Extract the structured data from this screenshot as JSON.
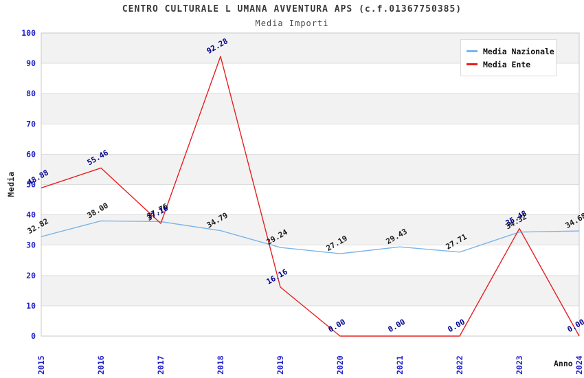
{
  "header": {
    "title": "CENTRO CULTURALE L UMANA AVVENTURA APS (c.f.01367750385)",
    "subtitle": "Media Importi"
  },
  "axes": {
    "y_label": "Media",
    "x_label": "Anno",
    "tick_color": "#2222cc",
    "grid_color": "#dcdcdc",
    "band_color": "#f2f2f2",
    "border_color": "#c8c8c8"
  },
  "chart_data": {
    "type": "line",
    "title": "CENTRO CULTURALE L UMANA AVVENTURA APS (c.f.01367750385)",
    "subtitle": "Media Importi",
    "xlabel": "Anno",
    "ylabel": "Media",
    "ylim": [
      0,
      100
    ],
    "ytick_step": 10,
    "grid": true,
    "legend_position": "top-right",
    "categories": [
      "2015",
      "2016",
      "2017",
      "2018",
      "2019",
      "2020",
      "2021",
      "2022",
      "2023",
      "2024"
    ],
    "series": [
      {
        "name": "Media Nazionale",
        "color": "#7cb5e8",
        "label_color": "#1a1a1a",
        "values": [
          32.82,
          38.0,
          37.76,
          34.79,
          29.24,
          27.19,
          29.43,
          27.71,
          34.32,
          34.68
        ]
      },
      {
        "name": "Media Ente",
        "color": "#e62020",
        "label_color": "#00008b",
        "values": [
          48.88,
          55.46,
          37.16,
          92.28,
          16.16,
          0.0,
          0.0,
          0.0,
          35.48,
          0.0
        ]
      }
    ]
  }
}
